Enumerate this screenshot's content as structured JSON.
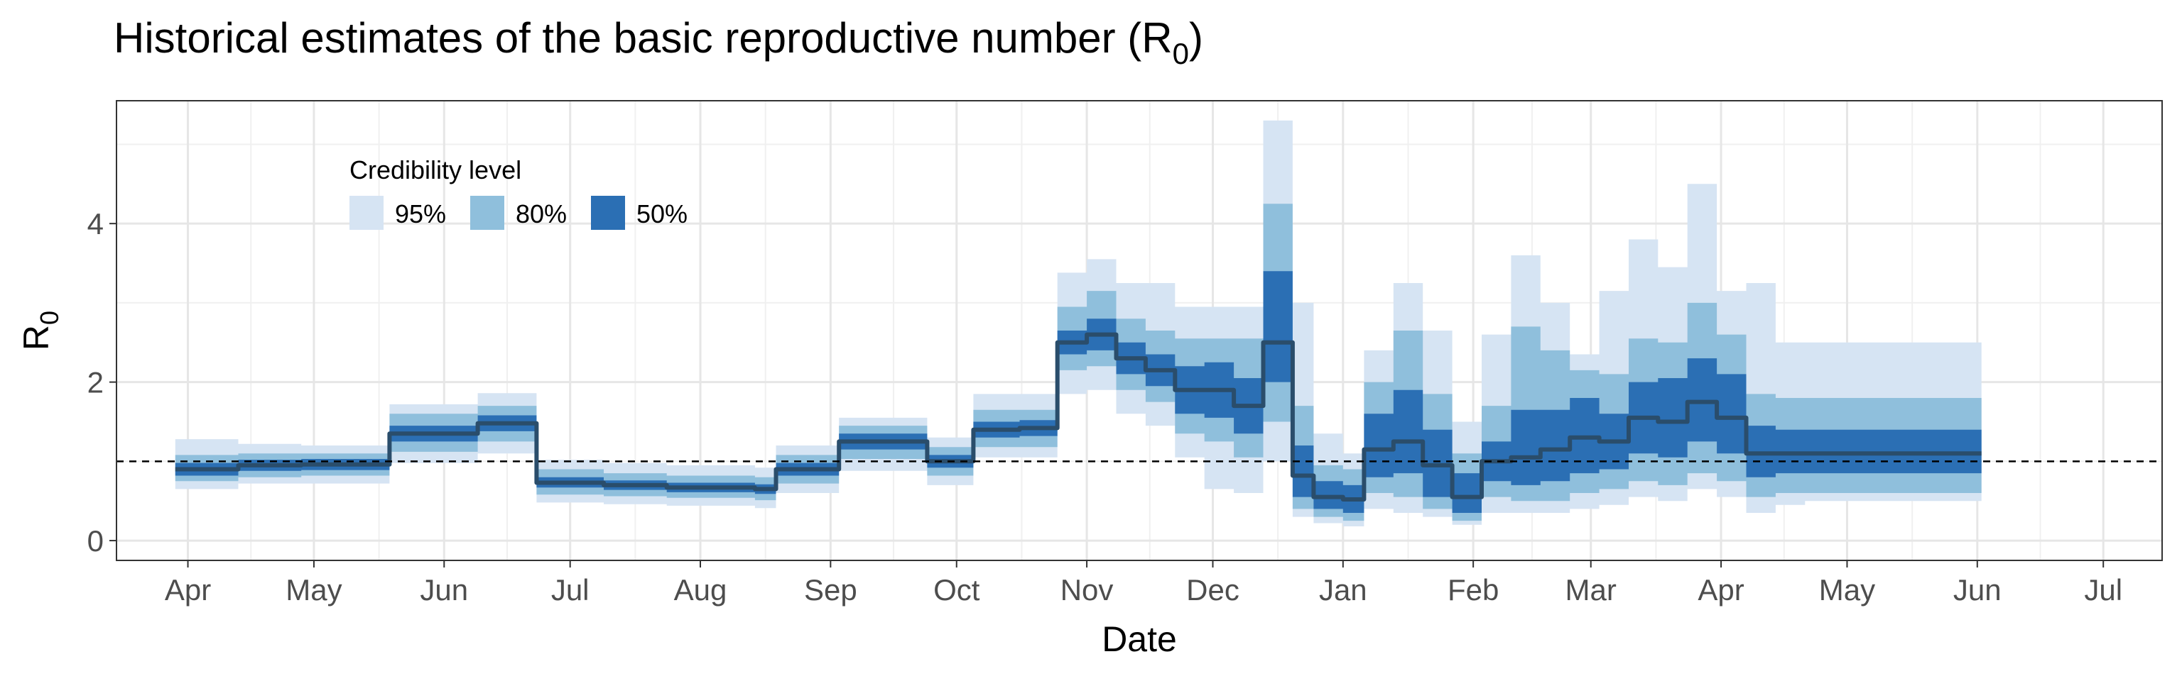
{
  "chart_data": {
    "type": "area",
    "title_main": "Historical estimates of the basic reproductive number (R",
    "title_sub": "0",
    "title_close": ")",
    "xlabel": "Date",
    "ylabel_main": "R",
    "ylabel_sub": "0",
    "x_tick_labels": [
      "Apr",
      "May",
      "Jun",
      "Jul",
      "Aug",
      "Sep",
      "Oct",
      "Nov",
      "Dec",
      "Jan",
      "Feb",
      "Mar",
      "Apr",
      "May",
      "Jun",
      "Jul"
    ],
    "x_ticks": [
      "2020-04-01",
      "2020-05-01",
      "2020-06-01",
      "2020-07-01",
      "2020-08-01",
      "2020-09-01",
      "2020-10-01",
      "2020-11-01",
      "2020-12-01",
      "2021-01-01",
      "2021-02-01",
      "2021-03-01",
      "2021-04-01",
      "2021-05-01",
      "2021-06-01",
      "2021-07-01"
    ],
    "y_ticks": [
      0,
      2,
      4
    ],
    "xlim": [
      "2020-03-15",
      "2021-07-15"
    ],
    "ylim": [
      -0.25,
      5.55
    ],
    "reference_line": 1,
    "grid": true,
    "legend": {
      "title": "Credibility level",
      "placement": "top-left",
      "items": [
        {
          "label": "95%",
          "color": "#d6e4f3"
        },
        {
          "label": "80%",
          "color": "#8fbfdc"
        },
        {
          "label": "50%",
          "color": "#2b6fb4"
        }
      ]
    },
    "median_color": "#2a4d6b",
    "x": [
      "2020-03-29",
      "2020-04-13",
      "2020-04-28",
      "2020-05-19",
      "2020-06-09",
      "2020-06-23",
      "2020-07-09",
      "2020-07-24",
      "2020-08-14",
      "2020-08-19",
      "2020-09-03",
      "2020-09-24",
      "2020-10-05",
      "2020-10-16",
      "2020-10-25",
      "2020-11-01",
      "2020-11-08",
      "2020-11-15",
      "2020-11-22",
      "2020-11-29",
      "2020-12-06",
      "2020-12-13",
      "2020-12-20",
      "2020-12-25",
      "2021-01-01",
      "2021-01-06",
      "2021-01-13",
      "2021-01-20",
      "2021-01-27",
      "2021-02-03",
      "2021-02-10",
      "2021-02-17",
      "2021-02-24",
      "2021-03-03",
      "2021-03-10",
      "2021-03-17",
      "2021-03-24",
      "2021-03-31",
      "2021-04-07",
      "2021-04-14",
      "2021-04-21",
      "2021-04-28",
      "2021-05-05",
      "2021-05-12",
      "2021-05-20",
      "2021-05-26"
    ],
    "median": [
      0.9,
      0.95,
      0.96,
      1.35,
      1.48,
      0.73,
      0.7,
      0.67,
      0.65,
      0.9,
      1.25,
      1.0,
      1.4,
      1.42,
      2.5,
      2.6,
      2.3,
      2.15,
      1.9,
      1.9,
      1.7,
      2.5,
      0.82,
      0.55,
      0.52,
      1.15,
      1.25,
      0.95,
      0.55,
      1.0,
      1.05,
      1.15,
      1.3,
      1.25,
      1.55,
      1.5,
      1.75,
      1.55,
      1.1,
      1.1,
      1.1,
      1.1,
      1.1,
      1.1,
      1.1,
      1.1
    ],
    "ci50": [
      [
        0.82,
        0.98
      ],
      [
        0.88,
        1.02
      ],
      [
        0.89,
        1.03
      ],
      [
        1.25,
        1.45
      ],
      [
        1.38,
        1.58
      ],
      [
        0.67,
        0.8
      ],
      [
        0.64,
        0.76
      ],
      [
        0.61,
        0.73
      ],
      [
        0.59,
        0.71
      ],
      [
        0.82,
        0.98
      ],
      [
        1.15,
        1.35
      ],
      [
        0.92,
        1.08
      ],
      [
        1.3,
        1.5
      ],
      [
        1.32,
        1.52
      ],
      [
        2.35,
        2.65
      ],
      [
        2.4,
        2.8
      ],
      [
        2.1,
        2.5
      ],
      [
        1.95,
        2.35
      ],
      [
        1.6,
        2.2
      ],
      [
        1.55,
        2.25
      ],
      [
        1.35,
        2.05
      ],
      [
        2.0,
        3.4
      ],
      [
        0.55,
        1.2
      ],
      [
        0.4,
        0.75
      ],
      [
        0.35,
        0.7
      ],
      [
        0.8,
        1.6
      ],
      [
        0.85,
        1.9
      ],
      [
        0.55,
        1.4
      ],
      [
        0.35,
        0.85
      ],
      [
        0.75,
        1.25
      ],
      [
        0.7,
        1.65
      ],
      [
        0.75,
        1.65
      ],
      [
        0.85,
        1.8
      ],
      [
        0.9,
        1.6
      ],
      [
        1.1,
        2.0
      ],
      [
        1.05,
        2.05
      ],
      [
        1.25,
        2.3
      ],
      [
        1.1,
        2.1
      ],
      [
        0.8,
        1.45
      ],
      [
        0.85,
        1.4
      ],
      [
        0.85,
        1.4
      ],
      [
        0.85,
        1.4
      ],
      [
        0.85,
        1.4
      ],
      [
        0.85,
        1.4
      ],
      [
        0.85,
        1.4
      ],
      [
        0.85,
        1.4
      ]
    ],
    "ci80": [
      [
        0.75,
        1.08
      ],
      [
        0.8,
        1.1
      ],
      [
        0.82,
        1.1
      ],
      [
        1.12,
        1.6
      ],
      [
        1.25,
        1.7
      ],
      [
        0.58,
        0.9
      ],
      [
        0.56,
        0.85
      ],
      [
        0.54,
        0.82
      ],
      [
        0.51,
        0.8
      ],
      [
        0.72,
        1.08
      ],
      [
        1.03,
        1.45
      ],
      [
        0.82,
        1.18
      ],
      [
        1.18,
        1.65
      ],
      [
        1.18,
        1.65
      ],
      [
        2.15,
        2.95
      ],
      [
        2.2,
        3.15
      ],
      [
        1.9,
        2.8
      ],
      [
        1.75,
        2.65
      ],
      [
        1.35,
        2.55
      ],
      [
        1.25,
        2.55
      ],
      [
        1.05,
        2.55
      ],
      [
        1.5,
        4.25
      ],
      [
        0.4,
        1.7
      ],
      [
        0.3,
        0.95
      ],
      [
        0.25,
        0.9
      ],
      [
        0.6,
        2.0
      ],
      [
        0.55,
        2.65
      ],
      [
        0.4,
        1.85
      ],
      [
        0.25,
        1.1
      ],
      [
        0.55,
        1.7
      ],
      [
        0.5,
        2.7
      ],
      [
        0.5,
        2.4
      ],
      [
        0.6,
        2.15
      ],
      [
        0.65,
        2.1
      ],
      [
        0.75,
        2.55
      ],
      [
        0.7,
        2.5
      ],
      [
        0.85,
        3.0
      ],
      [
        0.75,
        2.6
      ],
      [
        0.55,
        1.85
      ],
      [
        0.6,
        1.8
      ],
      [
        0.6,
        1.8
      ],
      [
        0.6,
        1.8
      ],
      [
        0.6,
        1.8
      ],
      [
        0.6,
        1.8
      ],
      [
        0.6,
        1.8
      ],
      [
        0.6,
        1.8
      ]
    ],
    "ci95": [
      [
        0.65,
        1.28
      ],
      [
        0.72,
        1.22
      ],
      [
        0.72,
        1.2
      ],
      [
        0.98,
        1.72
      ],
      [
        1.1,
        1.86
      ],
      [
        0.48,
        1.02
      ],
      [
        0.46,
        0.98
      ],
      [
        0.44,
        0.95
      ],
      [
        0.41,
        0.92
      ],
      [
        0.6,
        1.2
      ],
      [
        0.88,
        1.55
      ],
      [
        0.7,
        1.3
      ],
      [
        1.05,
        1.85
      ],
      [
        1.05,
        1.85
      ],
      [
        1.85,
        3.38
      ],
      [
        1.9,
        3.55
      ],
      [
        1.6,
        3.25
      ],
      [
        1.45,
        3.25
      ],
      [
        1.05,
        2.95
      ],
      [
        0.65,
        2.95
      ],
      [
        0.6,
        2.95
      ],
      [
        1.0,
        5.3
      ],
      [
        0.3,
        3.0
      ],
      [
        0.22,
        1.35
      ],
      [
        0.18,
        1.1
      ],
      [
        0.4,
        2.4
      ],
      [
        0.35,
        3.25
      ],
      [
        0.3,
        2.65
      ],
      [
        0.2,
        1.5
      ],
      [
        0.35,
        2.6
      ],
      [
        0.35,
        3.6
      ],
      [
        0.35,
        3.0
      ],
      [
        0.4,
        2.35
      ],
      [
        0.45,
        3.15
      ],
      [
        0.55,
        3.8
      ],
      [
        0.5,
        3.45
      ],
      [
        0.65,
        4.5
      ],
      [
        0.55,
        3.15
      ],
      [
        0.35,
        3.25
      ],
      [
        0.45,
        2.5
      ],
      [
        0.5,
        2.5
      ],
      [
        0.5,
        2.5
      ],
      [
        0.5,
        2.5
      ],
      [
        0.5,
        2.5
      ],
      [
        0.5,
        2.5
      ],
      [
        0.5,
        2.5
      ]
    ],
    "last_step_end": "2021-06-02"
  }
}
